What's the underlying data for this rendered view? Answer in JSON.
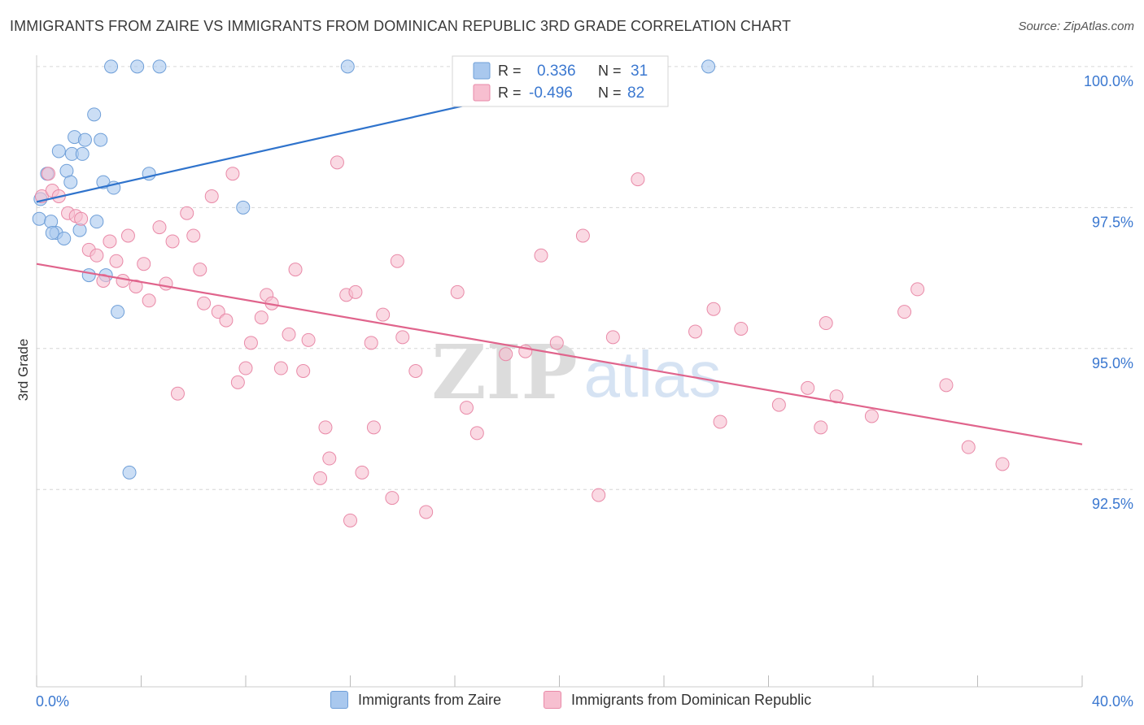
{
  "title": "IMMIGRANTS FROM ZAIRE VS IMMIGRANTS FROM DOMINICAN REPUBLIC 3RD GRADE CORRELATION CHART",
  "source": "Source: ZipAtlas.com",
  "watermark": {
    "zip": "ZIP",
    "atlas": "atlas"
  },
  "colors": {
    "zaire_fill": "#a9c8ee",
    "zaire_stroke": "#6f9fd8",
    "zaire_line": "#2f73cc",
    "dr_fill": "#f7bfd0",
    "dr_stroke": "#e98aa8",
    "dr_line": "#e0648c",
    "value_text": "#3b78d0",
    "grid": "#d6d6d6"
  },
  "legend": {
    "r_label": "R =",
    "n_label": "N =",
    "rows": [
      {
        "series": "zaire",
        "r": "0.336",
        "n": "31"
      },
      {
        "series": "dr",
        "r": "-0.496",
        "n": "82"
      }
    ]
  },
  "chart_data": {
    "type": "scatter",
    "title": "IMMIGRANTS FROM ZAIRE VS IMMIGRANTS FROM DOMINICAN REPUBLIC 3RD GRADE CORRELATION CHART",
    "xlabel": "",
    "ylabel": "3rd Grade",
    "xlim": [
      0,
      40
    ],
    "ylim": [
      89.0,
      100.2
    ],
    "x_tick_labels": [
      "0.0%",
      "40.0%"
    ],
    "y_ticks": [
      {
        "value": 100.0,
        "label": "100.0%"
      },
      {
        "value": 97.5,
        "label": "97.5%"
      },
      {
        "value": 95.0,
        "label": "95.0%"
      },
      {
        "value": 92.5,
        "label": "92.5%"
      }
    ],
    "series": [
      {
        "name": "Immigrants from Zaire",
        "key": "zaire",
        "r": 0.336,
        "n": 31,
        "trend": {
          "x0": 0.0,
          "y0": 97.6,
          "x1": 23.0,
          "y1": 100.0
        },
        "points": [
          [
            2.85,
            100.0
          ],
          [
            3.85,
            100.0
          ],
          [
            4.7,
            100.0
          ],
          [
            11.9,
            100.0
          ],
          [
            25.7,
            100.0
          ],
          [
            2.2,
            99.15
          ],
          [
            1.45,
            98.75
          ],
          [
            1.85,
            98.7
          ],
          [
            2.45,
            98.7
          ],
          [
            0.85,
            98.5
          ],
          [
            1.35,
            98.45
          ],
          [
            1.75,
            98.45
          ],
          [
            0.4,
            98.1
          ],
          [
            1.15,
            98.15
          ],
          [
            4.3,
            98.1
          ],
          [
            1.3,
            97.95
          ],
          [
            2.55,
            97.95
          ],
          [
            2.95,
            97.85
          ],
          [
            0.15,
            97.65
          ],
          [
            7.9,
            97.5
          ],
          [
            0.1,
            97.3
          ],
          [
            0.55,
            97.25
          ],
          [
            2.3,
            97.25
          ],
          [
            0.75,
            97.05
          ],
          [
            0.6,
            97.05
          ],
          [
            1.65,
            97.1
          ],
          [
            1.05,
            96.95
          ],
          [
            2.0,
            96.3
          ],
          [
            2.65,
            96.3
          ],
          [
            3.1,
            95.65
          ],
          [
            3.55,
            92.8
          ]
        ]
      },
      {
        "name": "Immigrants from Dominican Republic",
        "key": "dr",
        "r": -0.496,
        "n": 82,
        "trend": {
          "x0": 0.0,
          "y0": 96.5,
          "x1": 40.0,
          "y1": 93.3
        },
        "points": [
          [
            0.2,
            97.7
          ],
          [
            0.45,
            98.1
          ],
          [
            0.6,
            97.8
          ],
          [
            0.85,
            97.7
          ],
          [
            1.2,
            97.4
          ],
          [
            1.5,
            97.35
          ],
          [
            1.7,
            97.3
          ],
          [
            2.0,
            96.75
          ],
          [
            2.3,
            96.65
          ],
          [
            2.55,
            96.2
          ],
          [
            2.8,
            96.9
          ],
          [
            3.05,
            96.55
          ],
          [
            3.3,
            96.2
          ],
          [
            3.5,
            97.0
          ],
          [
            3.8,
            96.1
          ],
          [
            4.1,
            96.5
          ],
          [
            4.3,
            95.85
          ],
          [
            4.7,
            97.15
          ],
          [
            4.95,
            96.15
          ],
          [
            5.2,
            96.9
          ],
          [
            5.4,
            94.2
          ],
          [
            5.75,
            97.4
          ],
          [
            6.0,
            97.0
          ],
          [
            6.25,
            96.4
          ],
          [
            6.4,
            95.8
          ],
          [
            6.7,
            97.7
          ],
          [
            6.95,
            95.65
          ],
          [
            7.25,
            95.5
          ],
          [
            7.5,
            98.1
          ],
          [
            7.7,
            94.4
          ],
          [
            8.0,
            94.65
          ],
          [
            8.2,
            95.1
          ],
          [
            8.6,
            95.55
          ],
          [
            8.8,
            95.95
          ],
          [
            9.0,
            95.8
          ],
          [
            9.35,
            94.65
          ],
          [
            9.65,
            95.25
          ],
          [
            9.9,
            96.4
          ],
          [
            10.2,
            94.6
          ],
          [
            10.4,
            95.15
          ],
          [
            10.85,
            92.7
          ],
          [
            11.05,
            93.6
          ],
          [
            11.2,
            93.05
          ],
          [
            11.5,
            98.3
          ],
          [
            11.85,
            95.95
          ],
          [
            12.0,
            91.95
          ],
          [
            12.2,
            96.0
          ],
          [
            12.45,
            92.8
          ],
          [
            12.8,
            95.1
          ],
          [
            12.9,
            93.6
          ],
          [
            13.25,
            95.6
          ],
          [
            13.6,
            92.35
          ],
          [
            13.8,
            96.55
          ],
          [
            14.0,
            95.2
          ],
          [
            14.5,
            94.6
          ],
          [
            14.9,
            92.1
          ],
          [
            16.1,
            96.0
          ],
          [
            16.45,
            93.95
          ],
          [
            16.85,
            93.5
          ],
          [
            17.95,
            94.9
          ],
          [
            18.7,
            94.95
          ],
          [
            19.3,
            96.65
          ],
          [
            19.9,
            95.1
          ],
          [
            20.9,
            97.0
          ],
          [
            21.5,
            92.4
          ],
          [
            22.05,
            95.2
          ],
          [
            23.0,
            98.0
          ],
          [
            25.2,
            95.3
          ],
          [
            25.9,
            95.7
          ],
          [
            26.15,
            93.7
          ],
          [
            26.95,
            95.35
          ],
          [
            28.4,
            94.0
          ],
          [
            29.5,
            94.3
          ],
          [
            30.0,
            93.6
          ],
          [
            30.2,
            95.45
          ],
          [
            30.6,
            94.15
          ],
          [
            31.95,
            93.8
          ],
          [
            33.2,
            95.65
          ],
          [
            33.7,
            96.05
          ],
          [
            34.8,
            94.35
          ],
          [
            35.65,
            93.25
          ],
          [
            36.95,
            92.95
          ]
        ]
      }
    ]
  },
  "bottom_legend": [
    {
      "key": "zaire",
      "label": "Immigrants from Zaire"
    },
    {
      "key": "dr",
      "label": "Immigrants from Dominican Republic"
    }
  ]
}
